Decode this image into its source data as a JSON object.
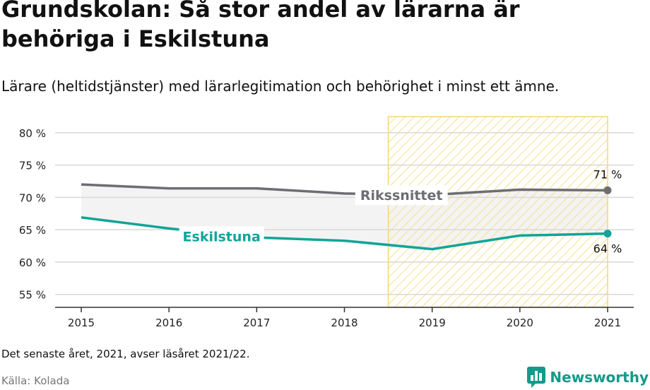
{
  "title": "Grundskolan: Så stor andel av lärarna är behöriga i Eskilstuna",
  "subtitle": "Lärare (heltidstjänster) med lärarlegitimation och behörighet i minst ett ämne.",
  "note": "Det senaste året, 2021, avser läsåret 2021/22.",
  "source": "Källa: Kolada",
  "brand": "Newsworthy",
  "colors": {
    "national": "#6d6d73",
    "local": "#10a597",
    "band": "#f3f3f3",
    "highlight_stripe": "#f7df8e",
    "highlight_border": "#f5d57a",
    "grid": "#d8d8d8",
    "axis": "#333333",
    "brand": "#149a8a"
  },
  "chart_data": {
    "type": "line",
    "x": [
      2015,
      2016,
      2017,
      2018,
      2019,
      2020,
      2021
    ],
    "x_tick_labels": [
      "2015",
      "2016",
      "2017",
      "2018",
      "2019",
      "2020",
      "2021"
    ],
    "ylim": [
      53,
      82.5
    ],
    "y_ticks": [
      55,
      60,
      65,
      70,
      75,
      80
    ],
    "y_tick_labels": [
      "55 %",
      "60 %",
      "65 %",
      "70 %",
      "75 %",
      "80 %"
    ],
    "highlight_range": [
      2018.5,
      2021
    ],
    "grid": true,
    "series": [
      {
        "name": "Rikssnittet",
        "values": [
          72.0,
          71.4,
          71.4,
          70.6,
          70.4,
          71.2,
          71.1
        ],
        "end_label": "71 %",
        "color": "#6d6d73"
      },
      {
        "name": "Eskilstuna",
        "values": [
          66.9,
          65.2,
          63.8,
          63.3,
          62.0,
          64.1,
          64.4
        ],
        "end_label": "64 %",
        "color": "#10a597"
      }
    ]
  }
}
